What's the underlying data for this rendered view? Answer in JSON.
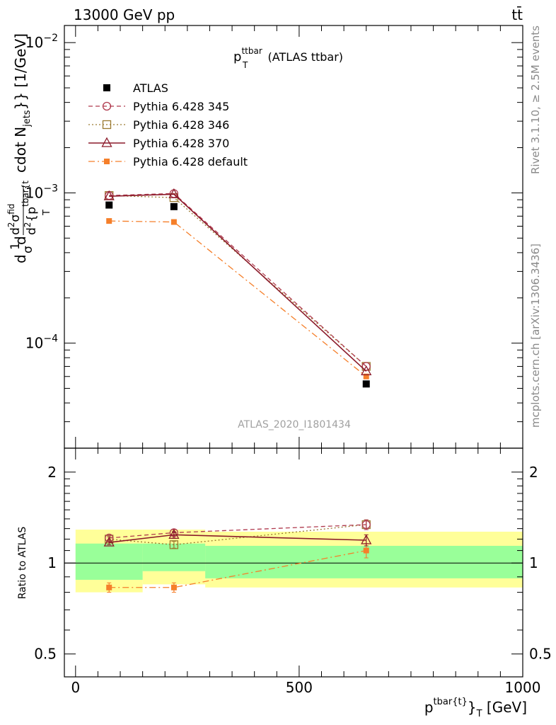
{
  "header": {
    "energy_label": "13000 GeV pp",
    "process_label": "tt̄"
  },
  "side_labels": {
    "rivet": "Rivet 3.1.10, ≥ 2.5M events",
    "site": "mcplots.cern.ch [arXiv:1306.3436]"
  },
  "colors": {
    "atlas": "#000000",
    "p345": "#b03a4e",
    "p346": "#9a7a30",
    "p370": "#8b1a2a",
    "pdef": "#f57f2a",
    "band_inner": "#99ff99",
    "band_outer": "#ffff99"
  },
  "chart_data": [
    {
      "type": "line",
      "title_main": "p",
      "title_sup": "ttbar",
      "title_sub": "T",
      "title_rest": "(ATLAS ttbar)",
      "watermark": "ATLAS_2020_I1801434",
      "ylabel": "d\\frac{1}{\\sigma}d \\frac{d^2\\sigma^{\\rm fid}}{d^2 {p_T^{tbar{t}}  cdot N_{jets}}} [1/GeV]",
      "ylabel_parts": {
        "a": "d",
        "b": "1",
        "c": "σ",
        "d": "d",
        "e": "d",
        "f": "2",
        "g": "σ",
        "h": "fid",
        "i": "d",
        "j": "2",
        "k": "{p",
        "l": "tbar{t",
        "m": "T",
        "n": "cdot N",
        "o": "jets",
        "p": "}} [1/GeV]"
      },
      "y_scale": "log",
      "ylim": [
        2e-05,
        0.013
      ],
      "xlim": [
        -25,
        1000
      ],
      "y_ticks": [
        {
          "value": 0.01,
          "base": "10",
          "exp": "−2"
        },
        {
          "value": 0.001,
          "base": "10",
          "exp": "−3"
        },
        {
          "value": 0.0001,
          "base": "10",
          "exp": "−4"
        }
      ],
      "legend_position": "top-left",
      "series": [
        {
          "key": "atlas",
          "name": "ATLAS",
          "x": [
            75,
            220,
            650
          ],
          "y": [
            0.00083,
            0.00081,
            5.35e-05
          ],
          "marker": "square-filled",
          "line": "none"
        },
        {
          "key": "p345",
          "name": "Pythia 6.428 345",
          "x": [
            75,
            220,
            650
          ],
          "y": [
            0.00096,
            0.00099,
            7e-05
          ],
          "marker": "circle-open",
          "line": "dashed"
        },
        {
          "key": "p346",
          "name": "Pythia 6.428 346",
          "x": [
            75,
            220,
            650
          ],
          "y": [
            0.00096,
            0.00093,
            7e-05
          ],
          "marker": "square-open",
          "line": "dotted"
        },
        {
          "key": "p370",
          "name": "Pythia 6.428 370",
          "x": [
            75,
            220,
            650
          ],
          "y": [
            0.00095,
            0.00098,
            6.5e-05
          ],
          "marker": "triangle-open",
          "line": "solid"
        },
        {
          "key": "pdef",
          "name": "Pythia 6.428 default",
          "x": [
            75,
            220,
            650
          ],
          "y": [
            0.00065,
            0.00064,
            6e-05
          ],
          "marker": "square-filled-small",
          "line": "dashdot"
        }
      ]
    },
    {
      "type": "line",
      "ylabel": "Ratio to ATLAS",
      "xlabel_main": "p",
      "xlabel_sup": "tbar{t}",
      "xlabel_sub": "T",
      "xlabel_rest": "[GeV]",
      "y_scale": "log",
      "ylim": [
        0.42,
        2.4
      ],
      "xlim": [
        -25,
        1000
      ],
      "x_ticks": [
        0,
        500,
        1000
      ],
      "y_ticks": [
        0.5,
        1,
        2
      ],
      "y_tick_labels": [
        "0.5",
        "1",
        "2"
      ],
      "x_tick_labels": [
        "0",
        "500",
        "1000"
      ],
      "bins": [
        {
          "x0": 0,
          "x1": 150,
          "inner": [
            0.88,
            1.16
          ],
          "outer": [
            0.8,
            1.29
          ]
        },
        {
          "x0": 150,
          "x1": 290,
          "inner": [
            0.94,
            1.16
          ],
          "outer": [
            0.85,
            1.29
          ]
        },
        {
          "x0": 290,
          "x1": 1000,
          "inner": [
            0.89,
            1.14
          ],
          "outer": [
            0.83,
            1.27
          ]
        }
      ],
      "series": [
        {
          "key": "p345",
          "x": [
            75,
            220,
            650
          ],
          "y": [
            1.21,
            1.26,
            1.34
          ],
          "err": [
            0.02,
            0.03,
            0.05
          ],
          "marker": "circle-open",
          "line": "dashed"
        },
        {
          "key": "p346",
          "x": [
            75,
            220,
            650
          ],
          "y": [
            1.2,
            1.15,
            1.34
          ],
          "err": [
            0.02,
            0.03,
            0.05
          ],
          "marker": "square-open",
          "line": "dotted"
        },
        {
          "key": "p370",
          "x": [
            75,
            220,
            650
          ],
          "y": [
            1.17,
            1.24,
            1.19
          ],
          "err": [
            0.02,
            0.03,
            0.05
          ],
          "marker": "triangle-open",
          "line": "solid"
        },
        {
          "key": "pdef",
          "x": [
            75,
            220,
            650
          ],
          "y": [
            0.83,
            0.83,
            1.1
          ],
          "err": [
            0.03,
            0.03,
            0.06
          ],
          "marker": "square-filled-small",
          "line": "dashdot"
        }
      ]
    }
  ]
}
